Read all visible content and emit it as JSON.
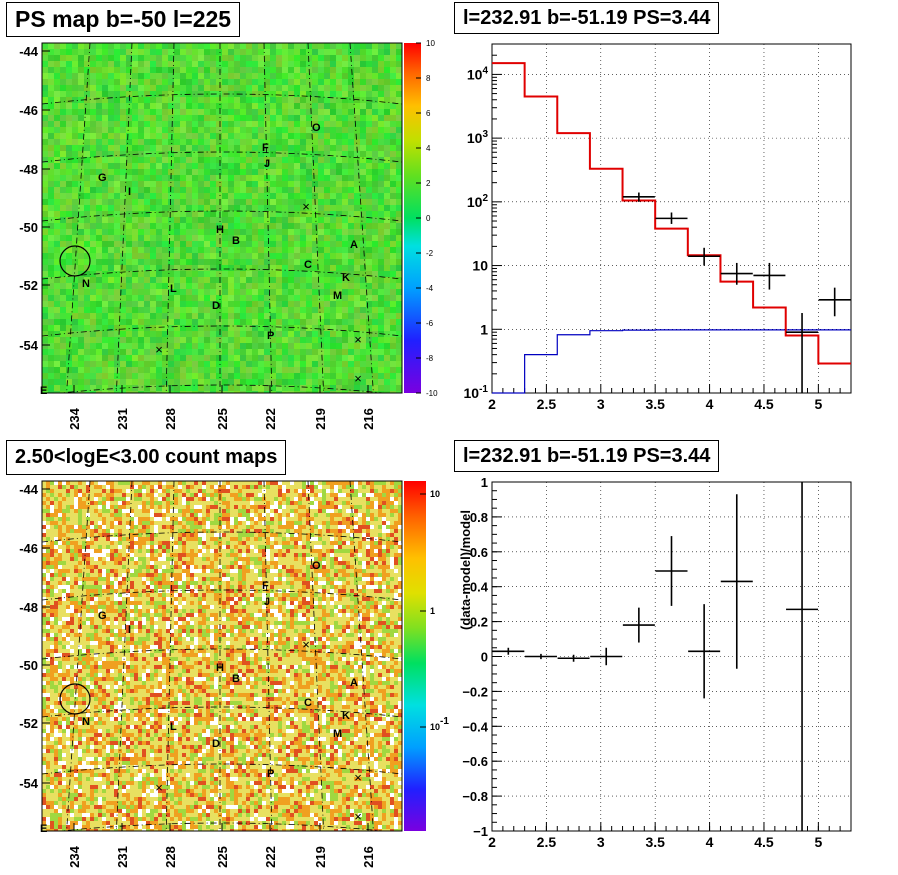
{
  "titles": {
    "ps_map": "PS map b=-50 l=225",
    "spectrum": "l=232.91 b=-51.19 PS=3.44",
    "count_map": "2.50<logE<3.00 count maps",
    "residual": "l=232.91 b=-51.19 PS=3.44"
  },
  "colors": {
    "data": "#000000",
    "model": "#e00000",
    "background_model": "#0000c0",
    "map_green": "#3fe040",
    "grid": "#000000"
  },
  "chart_data": [
    {
      "type": "heatmap",
      "title": "PS map b=-50 l=225",
      "xlabel": "",
      "ylabel": "",
      "x_ticks": [
        "234",
        "231",
        "228",
        "225",
        "222",
        "219",
        "216"
      ],
      "y_ticks": [
        "-44",
        "-46",
        "-48",
        "-50",
        "-52",
        "-54"
      ],
      "corner_label": "E",
      "colorbar": {
        "min": -10,
        "max": 10,
        "ticks": [
          "10",
          "8",
          "6",
          "4",
          "2",
          "0",
          "-2",
          "-4",
          "-6",
          "-8",
          "-10"
        ]
      },
      "sources": [
        "O",
        "F",
        "J",
        "G",
        "I",
        "H",
        "B",
        "A",
        "C",
        "K",
        "N",
        "L",
        "M",
        "D",
        "P"
      ],
      "grid": true
    },
    {
      "type": "bar",
      "title": "l=232.91 b=-51.19 PS=3.44",
      "xlabel": "",
      "ylabel": "",
      "yscale": "log",
      "xlim": [
        2,
        5.3
      ],
      "ylim": [
        0.1,
        30000
      ],
      "x_ticks": [
        "2",
        "2.5",
        "3",
        "3.5",
        "4",
        "4.5",
        "5"
      ],
      "y_ticks": [
        "10^-1",
        "1",
        "10",
        "10^2",
        "10^3",
        "10^4"
      ],
      "bin_edges": [
        2.0,
        2.3,
        2.6,
        2.9,
        3.2,
        3.5,
        3.8,
        4.1,
        4.4,
        4.7,
        5.0,
        5.3
      ],
      "series": [
        {
          "values": [
            15000,
            4500,
            1200,
            330,
            105,
            38,
            14.5,
            5.6,
            2.2,
            0.8,
            0.29
          ]
        },
        {
          "values": [
            0.1,
            0.4,
            0.82,
            0.95,
            0.97,
            0.98,
            0.98,
            0.98,
            0.98,
            0.98,
            0.98
          ]
        },
        {
          "x": [
            3.35,
            3.65,
            3.95,
            4.25,
            4.55,
            4.85,
            5.15
          ],
          "y": [
            120,
            55,
            14,
            7.5,
            7,
            0.9,
            2.9
          ],
          "ylow": [
            100,
            45,
            10,
            5,
            4.2,
            0.1,
            1.6
          ],
          "yhigh": [
            140,
            68,
            19,
            11,
            11,
            1.8,
            4.5
          ]
        }
      ],
      "grid": true
    },
    {
      "type": "heatmap",
      "title": "2.50<logE<3.00 count maps",
      "xlabel": "",
      "ylabel": "",
      "x_ticks": [
        "234",
        "231",
        "228",
        "225",
        "222",
        "219",
        "216"
      ],
      "y_ticks": [
        "-44",
        "-46",
        "-48",
        "-50",
        "-52",
        "-54"
      ],
      "corner_label": "E",
      "colorbar": {
        "scale": "log",
        "ticks": [
          "10",
          "1",
          "10^-1"
        ]
      },
      "sources": [
        "O",
        "F",
        "J",
        "G",
        "I",
        "H",
        "B",
        "A",
        "C",
        "K",
        "N",
        "L",
        "M",
        "D",
        "P"
      ],
      "grid": true
    },
    {
      "type": "scatter",
      "title": "l=232.91 b=-51.19 PS=3.44",
      "xlabel": "",
      "ylabel": "(data-model)/model",
      "xlim": [
        2,
        5.3
      ],
      "ylim": [
        -1,
        1
      ],
      "x_ticks": [
        "2",
        "2.5",
        "3",
        "3.5",
        "4",
        "4.5",
        "5"
      ],
      "y_ticks": [
        "1",
        "0.8",
        "0.6",
        "0.4",
        "0.2",
        "0",
        "-0.2",
        "-0.4",
        "-0.6",
        "-0.8",
        "-1"
      ],
      "series": [
        {
          "x": [
            2.15,
            2.45,
            2.75,
            3.05,
            3.35,
            3.65,
            3.95,
            4.25,
            4.85
          ],
          "y": [
            0.03,
            0.0,
            -0.01,
            0.0,
            0.18,
            0.49,
            0.03,
            0.43,
            0.27
          ],
          "yerr": [
            0.02,
            0.015,
            0.02,
            0.05,
            0.1,
            0.2,
            0.27,
            0.5,
            1.3
          ]
        }
      ],
      "grid": true
    }
  ]
}
